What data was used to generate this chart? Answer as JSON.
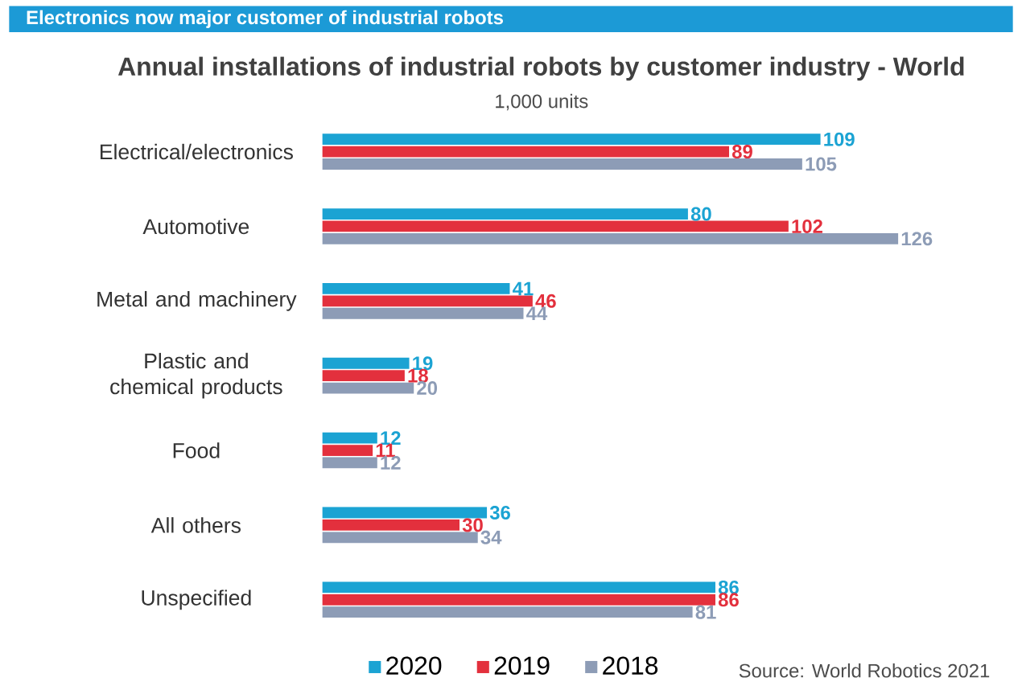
{
  "chart_data": {
    "type": "bar",
    "orientation": "horizontal",
    "title": "Annual installations of industrial robots by customer industry - World",
    "subtitle": "1,000 units",
    "annotations": [
      "Electronics now major customer of industrial robots",
      "Source: World Robotics 2021"
    ],
    "categories": [
      "Electrical/electronics",
      "Automotive",
      "Metal and machinery",
      "Plastic and chemical products",
      "Food",
      "All others",
      "Unspecified"
    ],
    "series": [
      {
        "name": "2020",
        "color": "#1ba3d3",
        "values": [
          109,
          80,
          41,
          19,
          12,
          36,
          86
        ]
      },
      {
        "name": "2019",
        "color": "#e3303d",
        "values": [
          89,
          102,
          46,
          18,
          11,
          30,
          86
        ]
      },
      {
        "name": "2018",
        "color": "#8d9cb6",
        "values": [
          105,
          126,
          44,
          20,
          12,
          34,
          81
        ]
      }
    ],
    "data_labels": true,
    "legend": "bottom"
  }
}
